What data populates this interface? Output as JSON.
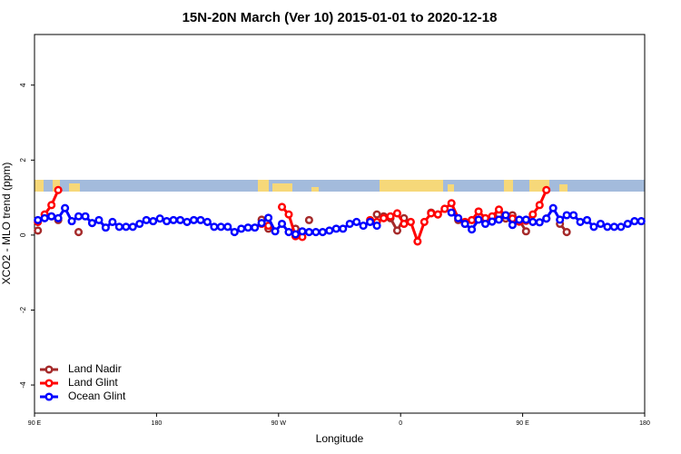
{
  "chart_data": {
    "type": "line",
    "title": "15N-20N March (Ver 10)   2015-01-01 to 2020-12-18",
    "x_label": "Longitude",
    "y_label": "XCO2 - MLO trend (ppm)",
    "xlim": [
      90,
      540
    ],
    "ylim": [
      -4.75,
      5.35
    ],
    "xticks": [
      {
        "value": 90,
        "label": "90 E"
      },
      {
        "value": 180,
        "label": "180"
      },
      {
        "value": 270,
        "label": "90 W"
      },
      {
        "value": 360,
        "label": "0"
      },
      {
        "value": 450,
        "label": "90 E"
      },
      {
        "value": 540,
        "label": "180"
      }
    ],
    "yticks": [
      -4,
      -2,
      0,
      2,
      4
    ],
    "legend": "bottom-left",
    "x": [
      92.5,
      97.5,
      102.5,
      107.5,
      112.5,
      117.5,
      122.5,
      127.5,
      132.5,
      137.5,
      142.5,
      147.5,
      152.5,
      157.5,
      162.5,
      167.5,
      172.5,
      177.5,
      182.5,
      187.5,
      192.5,
      197.5,
      202.5,
      207.5,
      212.5,
      217.5,
      222.5,
      227.5,
      232.5,
      237.5,
      242.5,
      247.5,
      252.5,
      257.5,
      262.5,
      267.5,
      272.5,
      277.5,
      282.5,
      287.5,
      292.5,
      297.5,
      302.5,
      307.5,
      312.5,
      317.5,
      322.5,
      327.5,
      332.5,
      337.5,
      342.5,
      347.5,
      352.5,
      357.5,
      362.5,
      367.5,
      372.5,
      377.5,
      382.5,
      387.5,
      392.5,
      397.5,
      402.5,
      407.5,
      412.5,
      417.5,
      422.5,
      427.5,
      432.5,
      437.5,
      442.5,
      447.5,
      452.5,
      457.5,
      462.5,
      467.5,
      472.5,
      477.5,
      482.5,
      487.5,
      492.5,
      497.5,
      502.5,
      507.5,
      512.5,
      517.5,
      522.5,
      527.5,
      532.5,
      537.5
    ],
    "series": [
      {
        "name": "Land Nadir",
        "color": "#a52a2a",
        "values": [
          0.12,
          null,
          0.5,
          0.4,
          null,
          null,
          0.08,
          null,
          null,
          null,
          null,
          null,
          null,
          null,
          null,
          null,
          null,
          null,
          null,
          null,
          null,
          null,
          null,
          null,
          null,
          null,
          null,
          null,
          null,
          null,
          null,
          null,
          null,
          0.41,
          0.17,
          null,
          null,
          null,
          0.17,
          null,
          0.4,
          null,
          null,
          null,
          null,
          null,
          null,
          null,
          null,
          null,
          0.55,
          0.5,
          0.45,
          0.12,
          0.45,
          null,
          null,
          null,
          0.6,
          0.55,
          null,
          null,
          0.4,
          0.3,
          null,
          null,
          null,
          null,
          0.55,
          0.44,
          0.53,
          0.4,
          0.1,
          null,
          null,
          0.44,
          null,
          0.3,
          0.08,
          null,
          null,
          null,
          null,
          null,
          null,
          null,
          null,
          null,
          null,
          null
        ]
      },
      {
        "name": "Land Glint",
        "color": "#ff0000",
        "values": [
          0.35,
          0.55,
          0.8,
          1.2,
          null,
          null,
          null,
          null,
          null,
          null,
          null,
          null,
          null,
          null,
          null,
          null,
          null,
          null,
          null,
          null,
          null,
          null,
          null,
          null,
          null,
          null,
          null,
          null,
          null,
          null,
          null,
          null,
          null,
          0.3,
          0.25,
          null,
          0.75,
          0.55,
          -0.03,
          -0.05,
          null,
          null,
          null,
          null,
          null,
          null,
          null,
          null,
          null,
          0.4,
          0.35,
          0.45,
          0.5,
          0.58,
          0.3,
          0.35,
          -0.17,
          0.35,
          0.58,
          0.55,
          0.7,
          0.85,
          0.45,
          0.35,
          0.4,
          0.63,
          0.45,
          0.5,
          0.68,
          0.53,
          0.44,
          0.36,
          0.38,
          0.55,
          0.8,
          1.2,
          null,
          null,
          null,
          null,
          null,
          null,
          null,
          null,
          null,
          null,
          null,
          null,
          null,
          null
        ]
      },
      {
        "name": "Ocean Glint",
        "color": "#0000ff",
        "values": [
          0.4,
          0.45,
          0.5,
          0.45,
          0.72,
          0.37,
          0.5,
          0.5,
          0.32,
          0.4,
          0.2,
          0.35,
          0.22,
          0.22,
          0.22,
          0.3,
          0.4,
          0.37,
          0.44,
          0.37,
          0.4,
          0.4,
          0.35,
          0.4,
          0.4,
          0.35,
          0.22,
          0.22,
          0.22,
          0.08,
          0.17,
          0.2,
          0.2,
          0.32,
          0.46,
          0.1,
          0.3,
          0.08,
          0.02,
          0.1,
          0.08,
          0.08,
          0.08,
          0.12,
          0.17,
          0.17,
          0.3,
          0.35,
          0.25,
          0.35,
          0.25,
          null,
          null,
          null,
          null,
          null,
          null,
          null,
          null,
          null,
          null,
          0.6,
          0.45,
          0.3,
          0.15,
          0.41,
          0.3,
          0.36,
          0.41,
          0.53,
          0.27,
          0.41,
          0.41,
          0.35,
          0.34,
          0.44,
          0.72,
          0.41,
          0.53,
          0.53,
          0.35,
          0.4,
          0.22,
          0.3,
          0.22,
          0.22,
          0.22,
          0.3,
          0.37,
          0.37
        ]
      }
    ]
  }
}
